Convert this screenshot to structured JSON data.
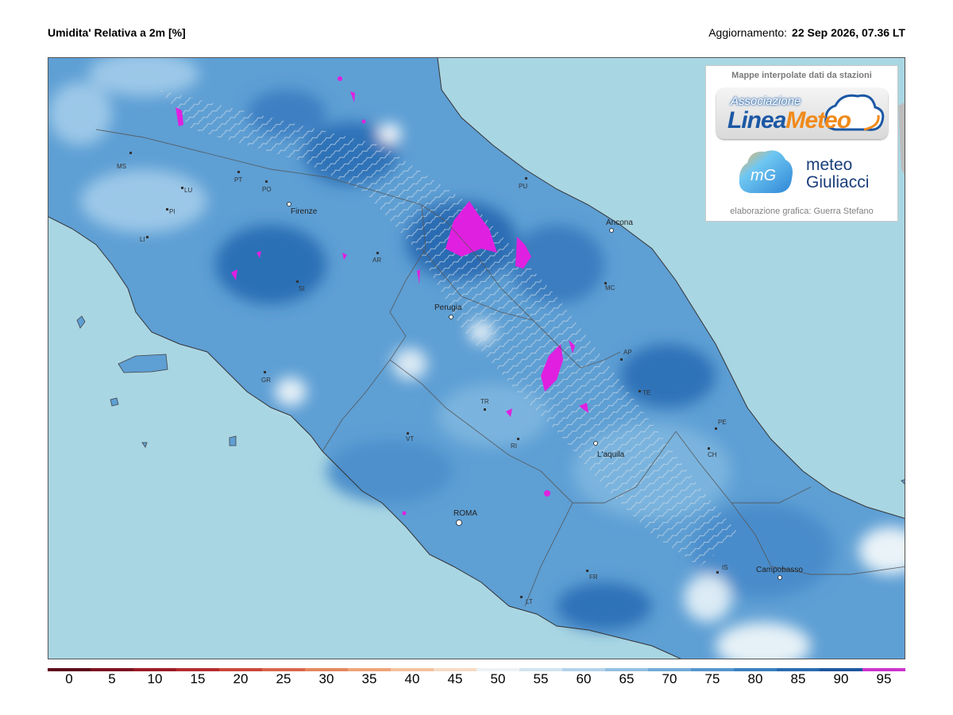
{
  "header": {
    "title": "Umidita' Relativa a 2m [%]",
    "update_label": "Aggiornamento:",
    "update_value": "22 Sep 2026, 07.36 LT"
  },
  "legend_box": {
    "caption_top": "Mappe interpolate dati da stazioni",
    "logo1_assoc": "Associazione",
    "logo1_name_a": "Linea",
    "logo1_name_b": "Meteo",
    "logo2_mark": "mG",
    "logo2_line1": "meteo",
    "logo2_line2": "Giuliacci",
    "caption_bottom": "elaborazione grafica: Guerra Stefano"
  },
  "cities": [
    {
      "name": "Firenze",
      "kind": "city"
    },
    {
      "name": "Ancona",
      "kind": "city"
    },
    {
      "name": "Perugia",
      "kind": "city"
    },
    {
      "name": "L'aquila",
      "kind": "city"
    },
    {
      "name": "ROMA",
      "kind": "capital"
    },
    {
      "name": "Campobasso",
      "kind": "city"
    }
  ],
  "provinces": [
    "MS",
    "LU",
    "PI",
    "LI",
    "PT",
    "PO",
    "AR",
    "SI",
    "GR",
    "PU",
    "MC",
    "AP",
    "TE",
    "PE",
    "CH",
    "TR",
    "RI",
    "VT",
    "FR",
    "LT",
    "IS"
  ],
  "colorbar": {
    "ticks": [
      "0",
      "5",
      "10",
      "15",
      "20",
      "25",
      "30",
      "35",
      "40",
      "45",
      "50",
      "55",
      "60",
      "65",
      "70",
      "75",
      "80",
      "85",
      "90",
      "95"
    ],
    "colors": [
      "#5c0a1a",
      "#7d1020",
      "#9c1b26",
      "#b52c2e",
      "#c9473a",
      "#d8654c",
      "#e5865f",
      "#eea47a",
      "#f3c29e",
      "#f5dbc4",
      "#eef2f4",
      "#d2e4ef",
      "#b4d3ea",
      "#93c0e2",
      "#72abd8",
      "#5596cd",
      "#3b80c0",
      "#2a6bb0",
      "#1d579f",
      "#cc33cc"
    ]
  },
  "map": {
    "sea_color": "#a9d6e3",
    "land_base_color": "#5e9fd4",
    "saturated_color": "#e020e0"
  }
}
